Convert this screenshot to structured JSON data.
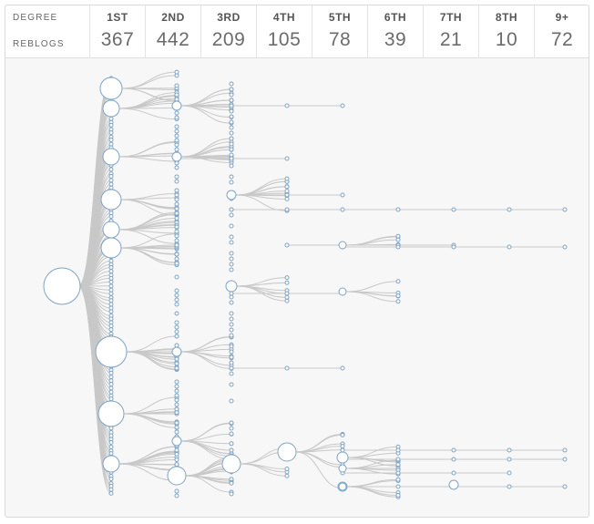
{
  "header": {
    "degree_label": "DEGREE",
    "reblogs_label": "REBLOGS",
    "columns": [
      {
        "degree": "1ST",
        "reblogs": "367"
      },
      {
        "degree": "2ND",
        "reblogs": "442"
      },
      {
        "degree": "3RD",
        "reblogs": "209"
      },
      {
        "degree": "4TH",
        "reblogs": "105"
      },
      {
        "degree": "5TH",
        "reblogs": "78"
      },
      {
        "degree": "6TH",
        "reblogs": "39"
      },
      {
        "degree": "7TH",
        "reblogs": "21"
      },
      {
        "degree": "8TH",
        "reblogs": "10"
      },
      {
        "degree": "9+",
        "reblogs": "72"
      }
    ]
  },
  "colors": {
    "edge": "#c8c8c8",
    "node_stroke": "#7ea3c4",
    "background": "#f7f7f7"
  }
}
